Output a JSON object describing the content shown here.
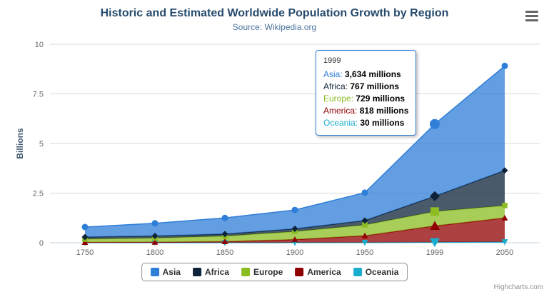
{
  "header": {
    "title": "Historic and Estimated Worldwide Population Growth by Region",
    "subtitle": "Source: Wikipedia.org"
  },
  "chart_data": {
    "type": "area",
    "stacking": "normal",
    "title": "Historic and Estimated Worldwide Population Growth by Region",
    "subtitle": "Source: Wikipedia.org",
    "categories": [
      "1750",
      "1800",
      "1850",
      "1900",
      "1950",
      "1999",
      "2050"
    ],
    "series": [
      {
        "name": "Asia",
        "color": "#2f7ed8",
        "marker": "circle",
        "values": [
          502,
          635,
          809,
          947,
          1402,
          3634,
          5268
        ]
      },
      {
        "name": "Africa",
        "color": "#0d233a",
        "marker": "diamond",
        "values": [
          106,
          107,
          111,
          133,
          221,
          767,
          1766
        ]
      },
      {
        "name": "Europe",
        "color": "#8bbc21",
        "marker": "square",
        "values": [
          163,
          203,
          276,
          408,
          547,
          729,
          628
        ]
      },
      {
        "name": "America",
        "color": "#910000",
        "marker": "triangle",
        "values": [
          18,
          31,
          54,
          156,
          339,
          818,
          1201
        ]
      },
      {
        "name": "Oceania",
        "color": "#1aadce",
        "marker": "triangle-down",
        "values": [
          2,
          2,
          2,
          6,
          13,
          30,
          46
        ]
      }
    ],
    "unit": "millions",
    "value_scale": 0.001,
    "xlabel": "",
    "ylabel": "Billions",
    "yticks": [
      0,
      2.5,
      5,
      7.5,
      10
    ],
    "ylim": [
      0,
      10
    ],
    "grid": true,
    "legend_position": "bottom",
    "hovered_category_index": 5
  },
  "tooltip": {
    "header": "1999",
    "border_color": "#2f7ed8",
    "rows": [
      {
        "label": "Asia",
        "value": "3,634 millions",
        "color": "#2f7ed8"
      },
      {
        "label": "Africa",
        "value": "767 millions",
        "color": "#0d233a"
      },
      {
        "label": "Europe",
        "value": "729 millions",
        "color": "#8bbc21"
      },
      {
        "label": "America",
        "value": "818 millions",
        "color": "#910000"
      },
      {
        "label": "Oceania",
        "value": "30 millions",
        "color": "#1aadce"
      }
    ]
  },
  "legend": {
    "items": [
      {
        "label": "Asia",
        "color": "#2f7ed8"
      },
      {
        "label": "Africa",
        "color": "#0d233a"
      },
      {
        "label": "Europe",
        "color": "#8bbc21"
      },
      {
        "label": "America",
        "color": "#910000"
      },
      {
        "label": "Oceania",
        "color": "#1aadce"
      }
    ]
  },
  "credits": {
    "label": "Highcharts.com"
  }
}
